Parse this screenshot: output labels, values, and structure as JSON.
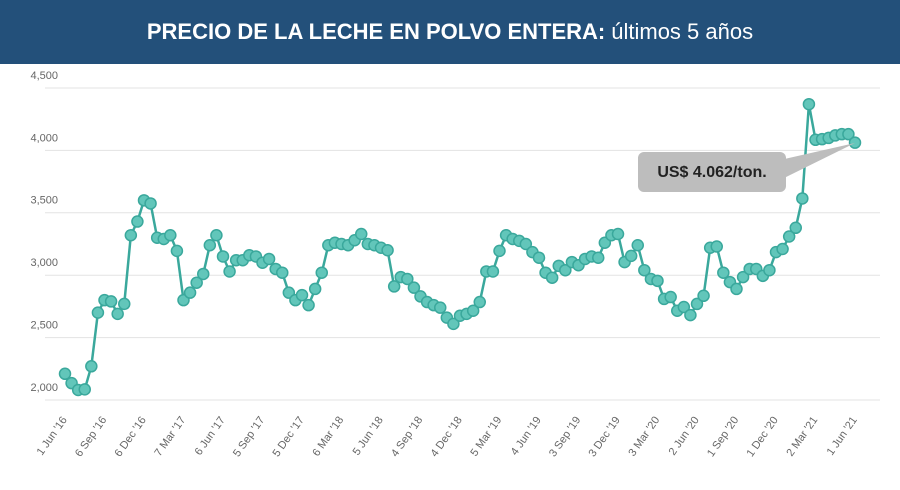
{
  "chart_data": {
    "type": "line",
    "title": "PRECIO DE LA LECHE EN POLVO ENTERA:",
    "subtitle": "últimos 5 años",
    "annotation": "US$ 4.062/ton.",
    "categories": [
      "1 Jun '16",
      null,
      null,
      null,
      null,
      null,
      "6 Sep '16",
      null,
      null,
      null,
      null,
      null,
      "6 Dec '16",
      null,
      null,
      null,
      null,
      null,
      "7 Mar '17",
      null,
      null,
      null,
      null,
      null,
      "6 Jun '17",
      null,
      null,
      null,
      null,
      null,
      "5 Sep '17",
      null,
      null,
      null,
      null,
      null,
      "5 Dec '17",
      null,
      null,
      null,
      null,
      null,
      "6 Mar '18",
      null,
      null,
      null,
      null,
      null,
      "5 Jun '18",
      null,
      null,
      null,
      null,
      null,
      "4 Sep '18",
      null,
      null,
      null,
      null,
      null,
      "4 Dec '18",
      null,
      null,
      null,
      null,
      null,
      "5 Mar '19",
      null,
      null,
      null,
      null,
      null,
      "4 Jun '19",
      null,
      null,
      null,
      null,
      null,
      "3 Sep '19",
      null,
      null,
      null,
      null,
      null,
      "3 Dec '19",
      null,
      null,
      null,
      null,
      null,
      "3 Mar '20",
      null,
      null,
      null,
      null,
      null,
      "2 Jun '20",
      null,
      null,
      null,
      null,
      null,
      "1 Sep '20",
      null,
      null,
      null,
      null,
      null,
      "1 Dec '20",
      null,
      null,
      null,
      null,
      null,
      "2 Mar '21",
      null,
      null,
      null,
      null,
      null,
      "1 Jun '21"
    ],
    "values": [
      2210,
      2135,
      2080,
      2085,
      2270,
      2700,
      2800,
      2790,
      2690,
      2770,
      3320,
      3430,
      3600,
      3575,
      3300,
      3290,
      3320,
      3195,
      2800,
      2860,
      2940,
      3010,
      3240,
      3320,
      3150,
      3030,
      3120,
      3120,
      3160,
      3150,
      3100,
      3130,
      3050,
      3020,
      2860,
      2800,
      2840,
      2760,
      2890,
      3020,
      3240,
      3260,
      3250,
      3240,
      3280,
      3330,
      3250,
      3240,
      3220,
      3200,
      2910,
      2985,
      2970,
      2900,
      2830,
      2785,
      2760,
      2740,
      2660,
      2610,
      2675,
      2690,
      2715,
      2785,
      3030,
      3030,
      3195,
      3320,
      3290,
      3275,
      3250,
      3185,
      3140,
      3020,
      2980,
      3075,
      3040,
      3105,
      3080,
      3130,
      3150,
      3140,
      3260,
      3320,
      3330,
      3105,
      3155,
      3240,
      3040,
      2970,
      2955,
      2810,
      2825,
      2715,
      2745,
      2680,
      2770,
      2835,
      3220,
      3230,
      3020,
      2945,
      2890,
      2985,
      3050,
      3050,
      2995,
      3040,
      3185,
      3210,
      3310,
      3380,
      3615,
      4370,
      4085,
      4090,
      4100,
      4120,
      4130,
      4130,
      4062
    ],
    "color": "#3aa89c",
    "ylim": [
      2000,
      4500
    ],
    "yticks": [
      {
        "value": 2000,
        "label": "2,000"
      },
      {
        "value": 2500,
        "label": "2,500"
      },
      {
        "value": 3000,
        "label": "3,000"
      },
      {
        "value": 3500,
        "label": "3,500"
      },
      {
        "value": 4000,
        "label": "4,000"
      },
      {
        "value": 4500,
        "label": "4,500"
      }
    ],
    "grid": true
  }
}
